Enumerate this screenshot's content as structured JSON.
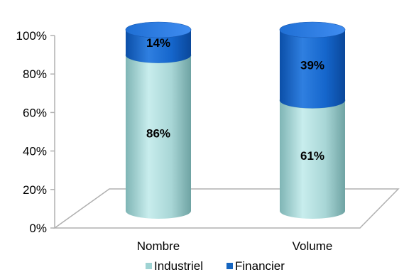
{
  "chart_data": {
    "type": "bar",
    "stacked": true,
    "percent": true,
    "style": "3d-cylinder",
    "categories": [
      "Nombre",
      "Volume"
    ],
    "series": [
      {
        "name": "Industriel",
        "values": [
          86,
          61
        ],
        "labels": [
          "86%",
          "61%"
        ],
        "color": "#9fd3d3"
      },
      {
        "name": "Financier",
        "values": [
          14,
          39
        ],
        "labels": [
          "14%",
          "39%"
        ],
        "color": "#1565c0"
      }
    ],
    "yticks": [
      "0%",
      "20%",
      "40%",
      "60%",
      "80%",
      "100%"
    ],
    "ylim": [
      0,
      100
    ],
    "title": "",
    "xlabel": "",
    "ylabel": "",
    "grid": false,
    "legend": "bottom"
  }
}
